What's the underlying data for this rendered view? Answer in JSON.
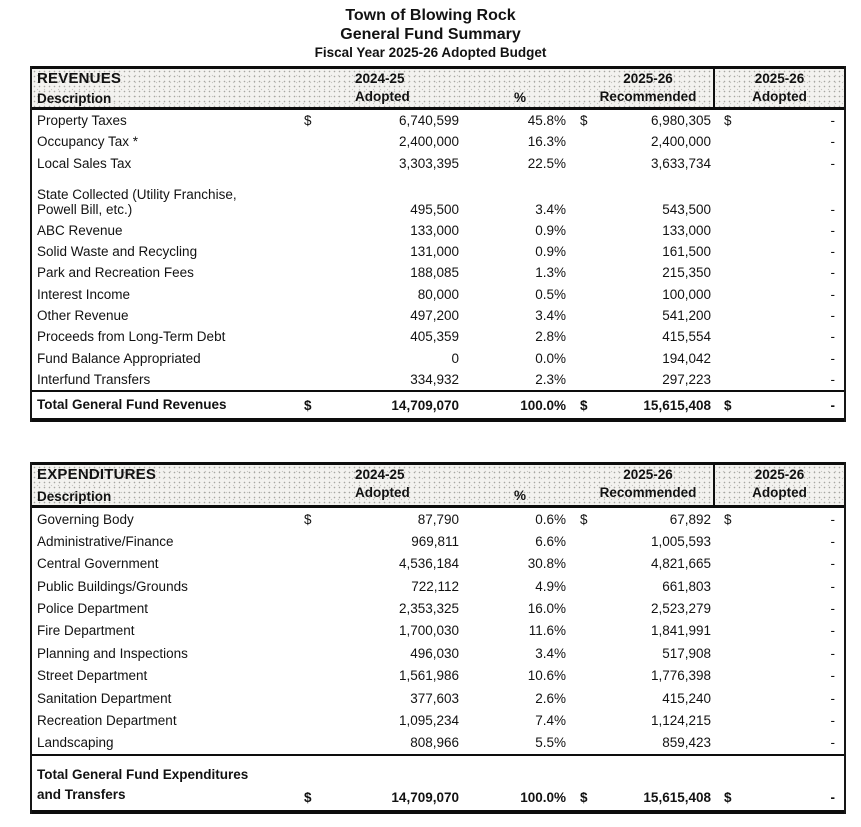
{
  "page_title": {
    "line1": "Town of Blowing Rock",
    "line2": "General Fund Summary",
    "line3": "Fiscal Year 2025-26 Adopted Budget"
  },
  "revenues": {
    "section_label": "REVENUES",
    "description_label": "Description",
    "col_2024_25": "2024-25",
    "col_2024_25_sub": "Adopted",
    "col_pct": "%",
    "col_2025_26_rec": "2025-26",
    "col_2025_26_rec_sub": "Recommended",
    "col_2025_26_adopted": "2025-26",
    "col_2025_26_adopted_sub": "Adopted",
    "rows": [
      {
        "label": "Property Taxes",
        "d1": "$",
        "adopted_2024_25": "6,740,599",
        "pct": "45.8%",
        "d2": "$",
        "recommended_2025_26": "6,980,305",
        "d3": "$",
        "adopted_2025_26": "-"
      },
      {
        "label": "Occupancy Tax *",
        "d1": "",
        "adopted_2024_25": "2,400,000",
        "pct": "16.3%",
        "d2": "",
        "recommended_2025_26": "2,400,000",
        "d3": "",
        "adopted_2025_26": "-"
      },
      {
        "label": "Local Sales Tax",
        "d1": "",
        "adopted_2024_25": "3,303,395",
        "pct": "22.5%",
        "d2": "",
        "recommended_2025_26": "3,633,734",
        "d3": "",
        "adopted_2025_26": "-"
      },
      {
        "label": "State Collected (Utility Franchise,",
        "label2": "Powell Bill, etc.)",
        "d1": "",
        "adopted_2024_25": "495,500",
        "pct": "3.4%",
        "d2": "",
        "recommended_2025_26": "543,500",
        "d3": "",
        "adopted_2025_26": "-"
      },
      {
        "label": "ABC Revenue",
        "d1": "",
        "adopted_2024_25": "133,000",
        "pct": "0.9%",
        "d2": "",
        "recommended_2025_26": "133,000",
        "d3": "",
        "adopted_2025_26": "-"
      },
      {
        "label": "Solid Waste and Recycling",
        "d1": "",
        "adopted_2024_25": "131,000",
        "pct": "0.9%",
        "d2": "",
        "recommended_2025_26": "161,500",
        "d3": "",
        "adopted_2025_26": "-"
      },
      {
        "label": "Park and Recreation Fees",
        "d1": "",
        "adopted_2024_25": "188,085",
        "pct": "1.3%",
        "d2": "",
        "recommended_2025_26": "215,350",
        "d3": "",
        "adopted_2025_26": "-"
      },
      {
        "label": "Interest Income",
        "d1": "",
        "adopted_2024_25": "80,000",
        "pct": "0.5%",
        "d2": "",
        "recommended_2025_26": "100,000",
        "d3": "",
        "adopted_2025_26": "-"
      },
      {
        "label": "Other Revenue",
        "d1": "",
        "adopted_2024_25": "497,200",
        "pct": "3.4%",
        "d2": "",
        "recommended_2025_26": "541,200",
        "d3": "",
        "adopted_2025_26": "-"
      },
      {
        "label": "Proceeds from Long-Term Debt",
        "d1": "",
        "adopted_2024_25": "405,359",
        "pct": "2.8%",
        "d2": "",
        "recommended_2025_26": "415,554",
        "d3": "",
        "adopted_2025_26": "-"
      },
      {
        "label": "Fund Balance Appropriated",
        "d1": "",
        "adopted_2024_25": "0",
        "pct": "0.0%",
        "d2": "",
        "recommended_2025_26": "194,042",
        "d3": "",
        "adopted_2025_26": "-"
      },
      {
        "label": "Interfund Transfers",
        "d1": "",
        "adopted_2024_25": "334,932",
        "pct": "2.3%",
        "d2": "",
        "recommended_2025_26": "297,223",
        "d3": "",
        "adopted_2025_26": "-"
      }
    ],
    "total": {
      "label": "Total General Fund Revenues",
      "d1": "$",
      "adopted_2024_25": "14,709,070",
      "pct": "100.0%",
      "d2": "$",
      "recommended_2025_26": "15,615,408",
      "d3": "$",
      "adopted_2025_26": "-"
    }
  },
  "expenditures": {
    "section_label": "EXPENDITURES",
    "description_label": "Description",
    "col_2024_25": "2024-25",
    "col_2024_25_sub": "Adopted",
    "col_pct": "%",
    "col_2025_26_rec": "2025-26",
    "col_2025_26_rec_sub": "Recommended",
    "col_2025_26_adopted": "2025-26",
    "col_2025_26_adopted_sub": "Adopted",
    "rows": [
      {
        "label": "Governing Body",
        "d1": "$",
        "adopted_2024_25": "87,790",
        "pct": "0.6%",
        "d2": "$",
        "recommended_2025_26": "67,892",
        "d3": "$",
        "adopted_2025_26": "-"
      },
      {
        "label": "Administrative/Finance",
        "d1": "",
        "adopted_2024_25": "969,811",
        "pct": "6.6%",
        "d2": "",
        "recommended_2025_26": "1,005,593",
        "d3": "",
        "adopted_2025_26": "-"
      },
      {
        "label": "Central Government",
        "d1": "",
        "adopted_2024_25": "4,536,184",
        "pct": "30.8%",
        "d2": "",
        "recommended_2025_26": "4,821,665",
        "d3": "",
        "adopted_2025_26": "-"
      },
      {
        "label": "Public Buildings/Grounds",
        "d1": "",
        "adopted_2024_25": "722,112",
        "pct": "4.9%",
        "d2": "",
        "recommended_2025_26": "661,803",
        "d3": "",
        "adopted_2025_26": "-"
      },
      {
        "label": "Police Department",
        "d1": "",
        "adopted_2024_25": "2,353,325",
        "pct": "16.0%",
        "d2": "",
        "recommended_2025_26": "2,523,279",
        "d3": "",
        "adopted_2025_26": "-"
      },
      {
        "label": "Fire Department",
        "d1": "",
        "adopted_2024_25": "1,700,030",
        "pct": "11.6%",
        "d2": "",
        "recommended_2025_26": "1,841,991",
        "d3": "",
        "adopted_2025_26": "-"
      },
      {
        "label": "Planning and Inspections",
        "d1": "",
        "adopted_2024_25": "496,030",
        "pct": "3.4%",
        "d2": "",
        "recommended_2025_26": "517,908",
        "d3": "",
        "adopted_2025_26": "-"
      },
      {
        "label": "Street Department",
        "d1": "",
        "adopted_2024_25": "1,561,986",
        "pct": "10.6%",
        "d2": "",
        "recommended_2025_26": "1,776,398",
        "d3": "",
        "adopted_2025_26": "-"
      },
      {
        "label": "Sanitation Department",
        "d1": "",
        "adopted_2024_25": "377,603",
        "pct": "2.6%",
        "d2": "",
        "recommended_2025_26": "415,240",
        "d3": "",
        "adopted_2025_26": "-"
      },
      {
        "label": "Recreation Department",
        "d1": "",
        "adopted_2024_25": "1,095,234",
        "pct": "7.4%",
        "d2": "",
        "recommended_2025_26": "1,124,215",
        "d3": "",
        "adopted_2025_26": "-"
      },
      {
        "label": "Landscaping",
        "d1": "",
        "adopted_2024_25": "808,966",
        "pct": "5.5%",
        "d2": "",
        "recommended_2025_26": "859,423",
        "d3": "",
        "adopted_2025_26": "-"
      }
    ],
    "total": {
      "label": "Total General Fund Expenditures",
      "label2": "and Transfers",
      "d1": "$",
      "adopted_2024_25": "14,709,070",
      "pct": "100.0%",
      "d2": "$",
      "recommended_2025_26": "15,615,408",
      "d3": "$",
      "adopted_2025_26": "-"
    }
  }
}
